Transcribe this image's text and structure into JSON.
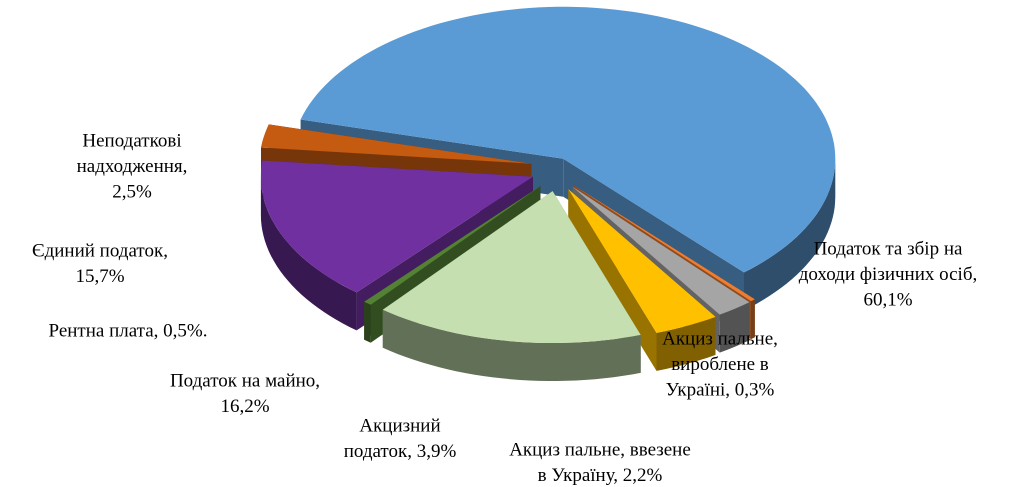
{
  "chart_data": {
    "type": "pie3d",
    "labels": [
      [
        "Податок та збір на",
        "доходи фізичних осіб,",
        "60,1%"
      ],
      [
        "Акциз пальне,",
        "вироблене в",
        "Україні, 0,3%"
      ],
      [
        "Акциз пальне, ввезене",
        "в Україну, 2,2%"
      ],
      [
        "Акцизний",
        "податок, 3,9%"
      ],
      [
        "Податок на майно,",
        "16,2%"
      ],
      [
        "Рентна плата, 0,5%."
      ],
      [
        "Єдиний податок,",
        "15,7%"
      ],
      [
        "Неподаткові",
        "надходження,",
        "2,5%"
      ]
    ],
    "values": [
      60.1,
      0.3,
      2.2,
      3.9,
      16.2,
      0.5,
      15.7,
      2.5
    ],
    "colors": [
      "#5b9bd5",
      "#ed7d31",
      "#a5a5a5",
      "#ffc000",
      "#c5dfb0",
      "#548235",
      "#7030a0",
      "#c55a11"
    ]
  }
}
